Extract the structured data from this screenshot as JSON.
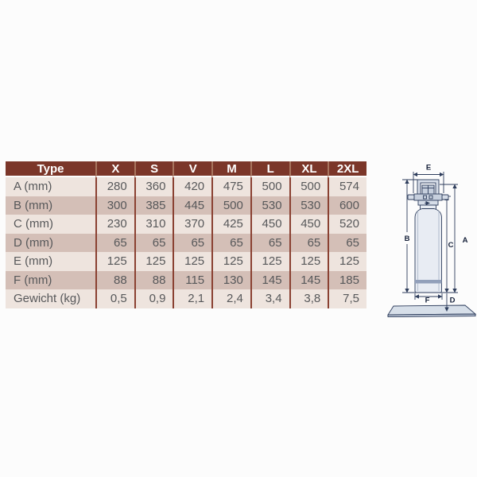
{
  "spec_table": {
    "header": [
      "Type",
      "X",
      "S",
      "V",
      "M",
      "L",
      "XL",
      "2XL"
    ],
    "rows": [
      {
        "label": "A (mm)",
        "values": [
          "280",
          "360",
          "420",
          "475",
          "500",
          "500",
          "574"
        ]
      },
      {
        "label": "B (mm)",
        "values": [
          "300",
          "385",
          "445",
          "500",
          "530",
          "530",
          "600"
        ]
      },
      {
        "label": "C (mm)",
        "values": [
          "230",
          "310",
          "370",
          "425",
          "450",
          "450",
          "520"
        ]
      },
      {
        "label": "D (mm)",
        "values": [
          "65",
          "65",
          "65",
          "65",
          "65",
          "65",
          "65"
        ]
      },
      {
        "label": "E (mm)",
        "values": [
          "125",
          "125",
          "125",
          "125",
          "125",
          "125",
          "125"
        ]
      },
      {
        "label": "F (mm)",
        "values": [
          "88",
          "88",
          "115",
          "130",
          "145",
          "145",
          "185"
        ]
      },
      {
        "label": "Gewicht (kg)",
        "values": [
          "0,5",
          "0,9",
          "2,1",
          "2,4",
          "3,4",
          "3,8",
          "7,5"
        ]
      }
    ]
  },
  "diagram": {
    "dim_labels": {
      "e": "E",
      "b": "B",
      "a": "A",
      "c": "C",
      "f": "F",
      "d": "D"
    }
  },
  "css_colors": {
    "page-bg": "#fcfcfc",
    "header-bg": "#7b3629",
    "header-text": "#ffffff",
    "header-sep": "#a8755f",
    "row-light": "#eee4de",
    "row-dark": "#d4bfb7",
    "col-sep": "#8a4132",
    "cell-text": "#57585a",
    "draw-stroke": "#2e3d5c",
    "draw-fill-light": "#e8ecf3",
    "draw-fill-mid": "#d6dde8",
    "draw-fill-dark": "#c6cfdd",
    "draw-band": "#92a0ba",
    "draw-base": "#d7dfe9",
    "draw-base-edge": "#b9c3d3",
    "draw-label": "#16213a"
  }
}
